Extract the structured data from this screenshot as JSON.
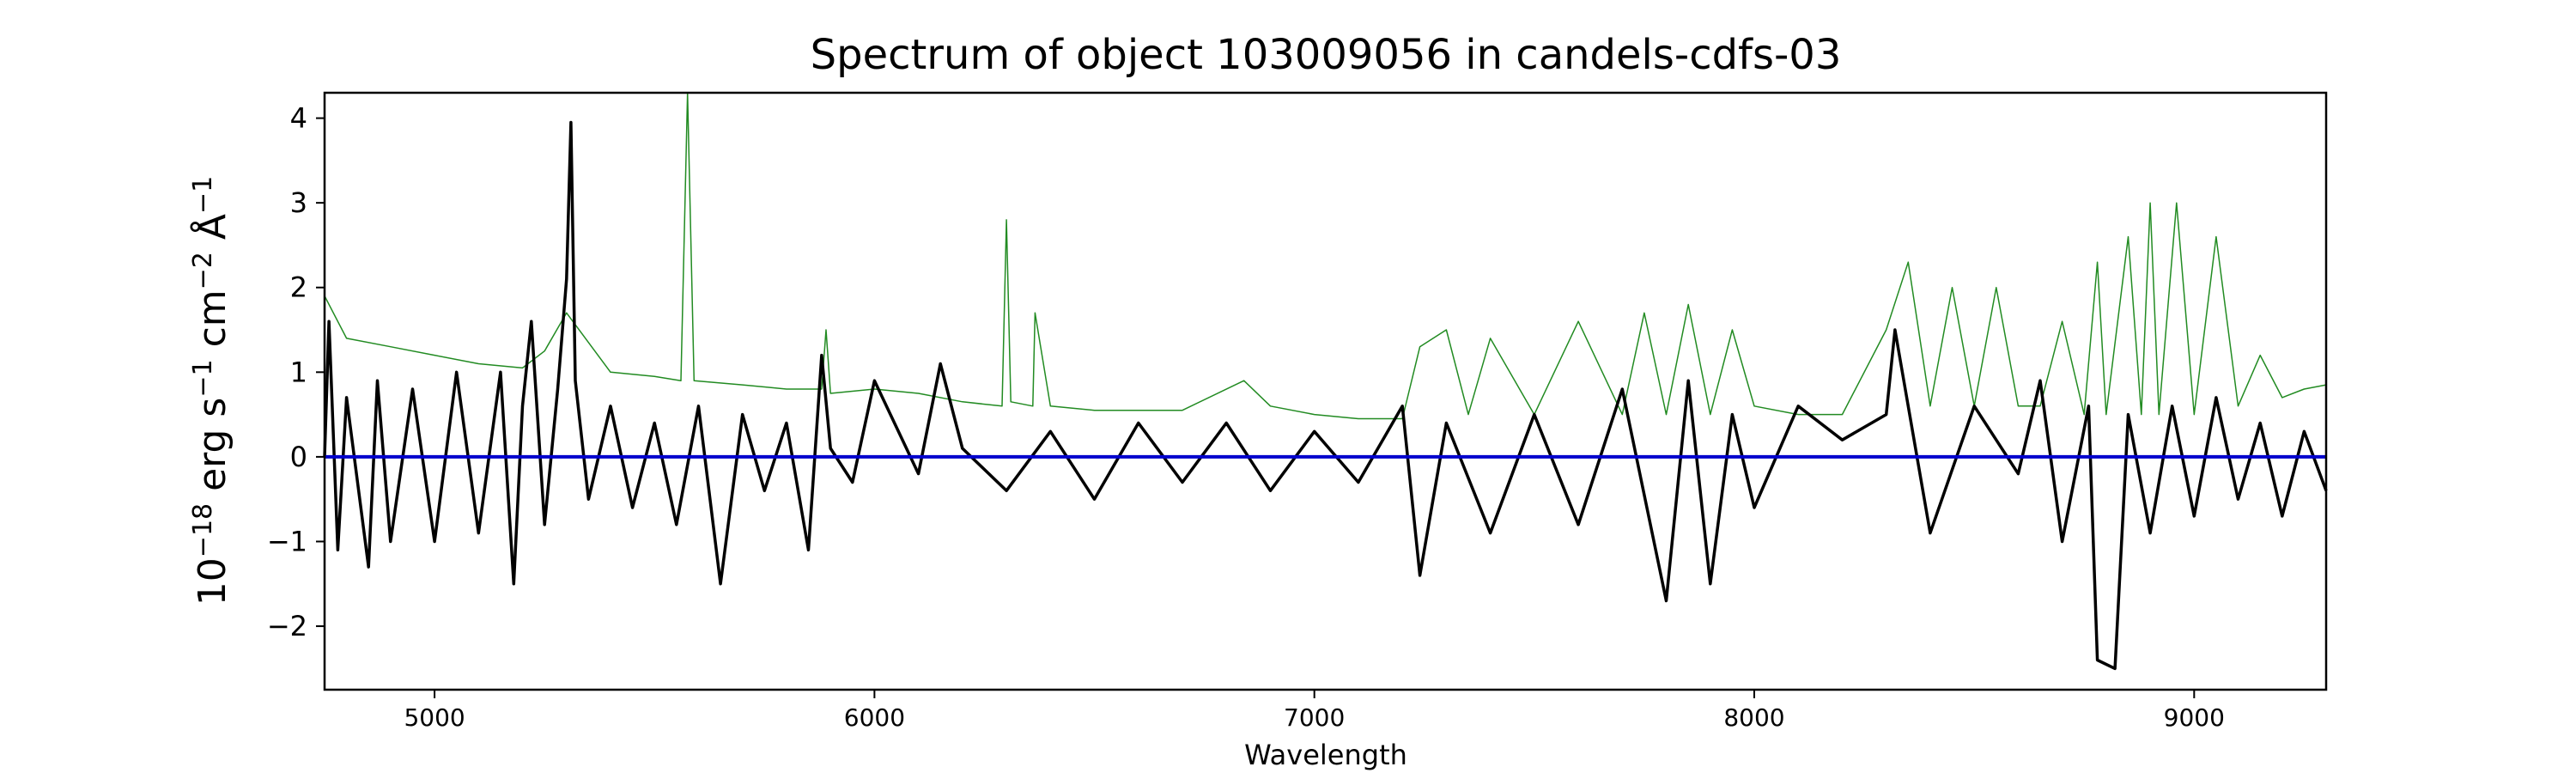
{
  "chart_data": {
    "type": "line",
    "title": "Spectrum of object 103009056 in candels-cdfs-03",
    "xlabel": "Wavelength",
    "ylabel_base": "10",
    "ylabel_exp": "−18",
    "ylabel_unit1": " erg s",
    "ylabel_unit1_exp": "−1",
    "ylabel_unit2": " cm",
    "ylabel_unit2_exp": "−2",
    "ylabel_unit3": " Å",
    "ylabel_unit3_exp": "−1",
    "xlim": [
      4750,
      9300
    ],
    "ylim": [
      -2.75,
      4.3
    ],
    "xticks": [
      5000,
      6000,
      7000,
      8000,
      9000
    ],
    "xtick_labels": [
      "5000",
      "6000",
      "7000",
      "8000",
      "9000"
    ],
    "yticks": [
      -2,
      -1,
      0,
      1,
      2,
      3,
      4
    ],
    "ytick_labels": [
      "−2",
      "−1",
      "0",
      "1",
      "2",
      "3",
      "4"
    ],
    "grid": false,
    "series": [
      {
        "color": "#228B22",
        "x": [
          4750,
          4800,
          4900,
          5000,
          5100,
          5200,
          5250,
          5300,
          5400,
          5500,
          5560,
          5575,
          5590,
          5700,
          5800,
          5880,
          5890,
          5900,
          6000,
          6100,
          6200,
          6290,
          6300,
          6310,
          6360,
          6365,
          6400,
          6500,
          6700,
          6840,
          6900,
          7000,
          7100,
          7200,
          7240,
          7300,
          7350,
          7400,
          7500,
          7600,
          7700,
          7750,
          7800,
          7850,
          7900,
          7950,
          8000,
          8100,
          8200,
          8300,
          8350,
          8400,
          8450,
          8500,
          8550,
          8600,
          8650,
          8700,
          8750,
          8780,
          8800,
          8850,
          8880,
          8900,
          8920,
          8960,
          9000,
          9050,
          9100,
          9150,
          9200,
          9250,
          9300
        ],
        "y": [
          1.9,
          1.4,
          1.3,
          1.2,
          1.1,
          1.05,
          1.25,
          1.7,
          1.0,
          0.95,
          0.9,
          4.3,
          0.9,
          0.85,
          0.8,
          0.8,
          1.5,
          0.75,
          0.8,
          0.75,
          0.65,
          0.6,
          2.8,
          0.65,
          0.6,
          1.7,
          0.6,
          0.55,
          0.55,
          0.9,
          0.6,
          0.5,
          0.45,
          0.45,
          1.3,
          1.5,
          0.5,
          1.4,
          0.5,
          1.6,
          0.5,
          1.7,
          0.5,
          1.8,
          0.5,
          1.5,
          0.6,
          0.5,
          0.5,
          1.5,
          2.3,
          0.6,
          2.0,
          0.6,
          2.0,
          0.6,
          0.6,
          1.6,
          0.5,
          2.3,
          0.5,
          2.6,
          0.5,
          3.0,
          0.5,
          3.0,
          0.5,
          2.6,
          0.6,
          1.2,
          0.7,
          0.8,
          0.85
        ]
      },
      {
        "color": "#000000",
        "x": [
          4750,
          4760,
          4780,
          4800,
          4850,
          4870,
          4900,
          4950,
          5000,
          5050,
          5100,
          5150,
          5180,
          5200,
          5220,
          5250,
          5280,
          5300,
          5310,
          5320,
          5350,
          5400,
          5450,
          5500,
          5550,
          5600,
          5650,
          5700,
          5750,
          5800,
          5850,
          5880,
          5900,
          5950,
          6000,
          6100,
          6150,
          6200,
          6300,
          6400,
          6500,
          6600,
          6700,
          6800,
          6900,
          7000,
          7100,
          7200,
          7240,
          7300,
          7400,
          7500,
          7600,
          7700,
          7800,
          7850,
          7900,
          7950,
          8000,
          8100,
          8200,
          8300,
          8320,
          8400,
          8500,
          8600,
          8650,
          8700,
          8760,
          8780,
          8820,
          8850,
          8900,
          8950,
          9000,
          9050,
          9100,
          9150,
          9200,
          9250,
          9300
        ],
        "y": [
          0.0,
          1.6,
          -1.1,
          0.7,
          -1.3,
          0.9,
          -1.0,
          0.8,
          -1.0,
          1.0,
          -0.9,
          1.0,
          -1.5,
          0.6,
          1.6,
          -0.8,
          0.8,
          2.1,
          3.95,
          0.9,
          -0.5,
          0.6,
          -0.6,
          0.4,
          -0.8,
          0.6,
          -1.5,
          0.5,
          -0.4,
          0.4,
          -1.1,
          1.2,
          0.1,
          -0.3,
          0.9,
          -0.2,
          1.1,
          0.1,
          -0.4,
          0.3,
          -0.5,
          0.4,
          -0.3,
          0.4,
          -0.4,
          0.3,
          -0.3,
          0.6,
          -1.4,
          0.4,
          -0.9,
          0.5,
          -0.8,
          0.8,
          -1.7,
          0.9,
          -1.5,
          0.5,
          -0.6,
          0.6,
          0.2,
          0.5,
          1.5,
          -0.9,
          0.6,
          -0.2,
          0.9,
          -1.0,
          0.6,
          -2.4,
          -2.5,
          0.5,
          -0.9,
          0.6,
          -0.7,
          0.7,
          -0.5,
          0.4,
          -0.7,
          0.3,
          -0.4
        ]
      },
      {
        "color": "#0000CD",
        "x": [
          4750,
          9300
        ],
        "y": [
          0.0,
          0.0
        ]
      }
    ]
  }
}
